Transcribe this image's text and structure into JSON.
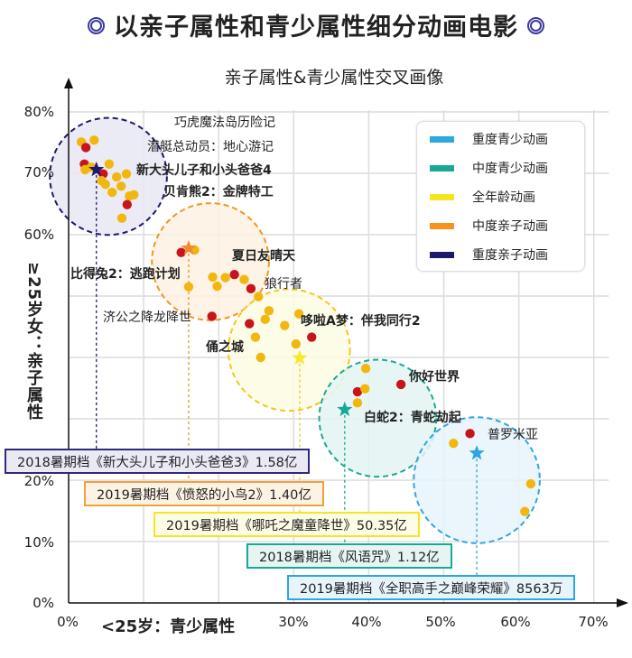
{
  "header": {
    "title": "以亲子属性和青少属性细分动画电影",
    "ring_color": "#3b3b9a"
  },
  "chart_data": {
    "type": "scatter",
    "title": "亲子属性&青少属性交叉画像",
    "xlabel": "<25岁：青少属性",
    "ylabel": "≥25岁女：亲子属性",
    "xlim": [
      0,
      70
    ],
    "ylim": [
      0,
      80
    ],
    "x_ticks": [
      "0%",
      "30%",
      "40%",
      "50%",
      "60%",
      "70%"
    ],
    "y_ticks": [
      "0%",
      "10%",
      "20%",
      "60%",
      "70%",
      "80%"
    ],
    "grid": true,
    "legend_position": "upper right",
    "legend": [
      {
        "name": "重度青少动画",
        "color": "#2ea6df"
      },
      {
        "name": "中度青少动画",
        "color": "#1aa896"
      },
      {
        "name": "全年龄动画",
        "color": "#f5e51e"
      },
      {
        "name": "中度亲子动画",
        "color": "#f5931e"
      },
      {
        "name": "重度亲子动画",
        "color": "#1e1a6b"
      }
    ],
    "clusters": [
      {
        "name": "重度亲子动画",
        "color": "#1e1a6b",
        "fill": "#e8e7f3",
        "center": {
          "x": 5.3,
          "y": 69.5
        },
        "radius_pct_x": 7.8,
        "star": {
          "x": 3.7,
          "y": 70.6
        },
        "box_label": "2018暑期档《新大头儿子和小头爸爸3》1.58亿"
      },
      {
        "name": "中度亲子动画",
        "color": "#f5931e",
        "fill": "#fdf1e2",
        "center": {
          "x": 18.9,
          "y": 55.6
        },
        "radius_pct_x": 7.8,
        "star": {
          "x": 16.0,
          "y": 57.8
        },
        "box_label": "2019暑期档《愤怒的小鸟2》1.40亿"
      },
      {
        "name": "全年龄动画",
        "color": "#f5c61e",
        "fill": "#fdfbe3",
        "center": {
          "x": 29.4,
          "y": 41.2
        },
        "radius_pct_x": 8.1,
        "star": {
          "x": 30.8,
          "y": 39.9
        },
        "box_label": "2019暑期档《哪吒之魔童降世》50.35亿"
      },
      {
        "name": "中度青少动画",
        "color": "#1aa896",
        "fill": "#e3f5f3",
        "center": {
          "x": 41.2,
          "y": 30.1
        },
        "radius_pct_x": 7.8,
        "star": {
          "x": 36.8,
          "y": 31.5
        },
        "box_label": "2018暑期档《风语咒》1.12亿"
      },
      {
        "name": "重度青少动画",
        "color": "#2ea6df",
        "fill": "#e6f3fb",
        "center": {
          "x": 54.4,
          "y": 20.0
        },
        "radius_pct_x": 8.4,
        "star": {
          "x": 54.4,
          "y": 24.4
        },
        "box_label": "2019暑期档《全职高手之巅峰荣耀》8563万"
      }
    ],
    "points": [
      {
        "x": 1.7,
        "y": 75.1,
        "color": "gold"
      },
      {
        "x": 2.3,
        "y": 74.2,
        "color": "red"
      },
      {
        "x": 3.4,
        "y": 75.4,
        "color": "gold"
      },
      {
        "x": 2.1,
        "y": 71.5,
        "color": "red"
      },
      {
        "x": 2.2,
        "y": 70.6,
        "color": "gold"
      },
      {
        "x": 3.0,
        "y": 71.0,
        "color": "gold"
      },
      {
        "x": 4.6,
        "y": 69.9,
        "color": "red"
      },
      {
        "x": 5.4,
        "y": 71.5,
        "color": "gold"
      },
      {
        "x": 4.4,
        "y": 68.8,
        "color": "gold"
      },
      {
        "x": 4.9,
        "y": 68.2,
        "color": "gold"
      },
      {
        "x": 6.4,
        "y": 69.4,
        "color": "gold"
      },
      {
        "x": 7.7,
        "y": 69.9,
        "color": "gold"
      },
      {
        "x": 5.8,
        "y": 66.9,
        "color": "gold"
      },
      {
        "x": 7.0,
        "y": 67.9,
        "color": "gold"
      },
      {
        "x": 8.1,
        "y": 66.3,
        "color": "gold"
      },
      {
        "x": 8.7,
        "y": 66.5,
        "color": "gold"
      },
      {
        "x": 7.8,
        "y": 64.9,
        "color": "red"
      },
      {
        "x": 7.1,
        "y": 62.7,
        "color": "gold"
      },
      {
        "x": 15.0,
        "y": 57.1,
        "color": "red"
      },
      {
        "x": 16.8,
        "y": 57.5,
        "color": "gold"
      },
      {
        "x": 19.2,
        "y": 53.1,
        "color": "gold"
      },
      {
        "x": 16.0,
        "y": 51.5,
        "color": "gold"
      },
      {
        "x": 19.8,
        "y": 51.6,
        "color": "gold"
      },
      {
        "x": 20.9,
        "y": 53.0,
        "color": "gold"
      },
      {
        "x": 22.1,
        "y": 53.5,
        "color": "red"
      },
      {
        "x": 23.4,
        "y": 52.7,
        "color": "gold"
      },
      {
        "x": 24.3,
        "y": 51.2,
        "color": "red"
      },
      {
        "x": 25.3,
        "y": 49.9,
        "color": "gold"
      },
      {
        "x": 19.1,
        "y": 46.7,
        "color": "red"
      },
      {
        "x": 26.7,
        "y": 47.6,
        "color": "gold"
      },
      {
        "x": 26.2,
        "y": 46.2,
        "color": "gold"
      },
      {
        "x": 28.8,
        "y": 45.2,
        "color": "gold"
      },
      {
        "x": 30.7,
        "y": 47.1,
        "color": "gold"
      },
      {
        "x": 24.1,
        "y": 45.5,
        "color": "red"
      },
      {
        "x": 24.9,
        "y": 43.3,
        "color": "gold"
      },
      {
        "x": 30.3,
        "y": 42.2,
        "color": "gold"
      },
      {
        "x": 32.4,
        "y": 43.3,
        "color": "red"
      },
      {
        "x": 25.6,
        "y": 40.0,
        "color": "gold"
      },
      {
        "x": 39.6,
        "y": 38.2,
        "color": "gold"
      },
      {
        "x": 38.5,
        "y": 34.4,
        "color": "red"
      },
      {
        "x": 39.5,
        "y": 34.9,
        "color": "gold"
      },
      {
        "x": 38.5,
        "y": 32.6,
        "color": "gold"
      },
      {
        "x": 44.3,
        "y": 35.6,
        "color": "red"
      },
      {
        "x": 51.3,
        "y": 26.0,
        "color": "gold"
      },
      {
        "x": 53.5,
        "y": 27.6,
        "color": "red"
      },
      {
        "x": 61.6,
        "y": 19.4,
        "color": "gold"
      },
      {
        "x": 60.8,
        "y": 14.9,
        "color": "gold"
      }
    ],
    "annotations": [
      {
        "text": "巧虎魔法岛历险记",
        "bold": false
      },
      {
        "text": "潜艇总动员：地心游记",
        "bold": false
      },
      {
        "text": "新大头儿子和小头爸爸4",
        "bold": true
      },
      {
        "text": "贝肯熊2：金牌特工",
        "bold": true
      },
      {
        "text": "比得兔2：逃跑计划",
        "bold": true
      },
      {
        "text": "夏日友晴天",
        "bold": true
      },
      {
        "text": "狼行者",
        "bold": false
      },
      {
        "text": "济公之降龙降世",
        "bold": false
      },
      {
        "text": "哆啦A梦：伴我同行2",
        "bold": true
      },
      {
        "text": "俑之城",
        "bold": true
      },
      {
        "text": "你好世界",
        "bold": true
      },
      {
        "text": "白蛇2：青蛇劫起",
        "bold": true
      },
      {
        "text": "普罗米亚",
        "bold": false
      }
    ]
  }
}
